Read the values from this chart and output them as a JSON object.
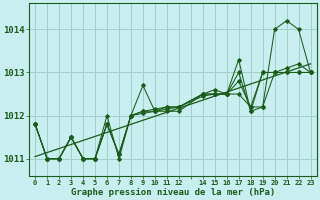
{
  "title": "Graphe pression niveau de la mer (hPa)",
  "bg_color": "#c8eef0",
  "grid_color": "#a0d0c8",
  "line_color": "#1a5c1a",
  "x_tick_labels": [
    "0",
    "1",
    "2",
    "3",
    "4",
    "5",
    "6",
    "7",
    "8",
    "9",
    "10",
    "11",
    "12",
    "",
    "14",
    "15",
    "16",
    "17",
    "18",
    "19",
    "20",
    "21",
    "22",
    "23"
  ],
  "x_tick_pos": [
    0,
    1,
    2,
    3,
    4,
    5,
    6,
    7,
    8,
    9,
    10,
    11,
    12,
    13,
    14,
    15,
    16,
    17,
    18,
    19,
    20,
    21,
    22,
    23
  ],
  "ylim": [
    1010.6,
    1014.6
  ],
  "yticks": [
    1011,
    1012,
    1013,
    1014
  ],
  "series": [
    {
      "x": [
        0,
        1,
        2,
        3,
        4,
        5,
        6,
        7,
        8,
        9,
        10,
        11,
        12,
        14,
        15,
        16,
        17,
        18,
        19,
        20,
        21,
        22,
        23
      ],
      "y": [
        1011.8,
        1011.0,
        1011.0,
        1011.5,
        1011.0,
        1011.0,
        1012.0,
        1011.0,
        1012.0,
        1012.7,
        1012.1,
        1012.1,
        1012.1,
        1012.5,
        1012.6,
        1012.5,
        1013.3,
        1012.1,
        1012.2,
        1014.0,
        1014.2,
        1014.0,
        1013.0
      ]
    },
    {
      "x": [
        0,
        1,
        2,
        3,
        4,
        5,
        6,
        7,
        8,
        9,
        10,
        11,
        12,
        14,
        15,
        16,
        17,
        18,
        19,
        20,
        21,
        22,
        23
      ],
      "y": [
        1011.8,
        1011.0,
        1011.0,
        1011.5,
        1011.0,
        1011.0,
        1011.8,
        1011.1,
        1012.0,
        1012.1,
        1012.1,
        1012.2,
        1012.2,
        1012.5,
        1012.5,
        1012.5,
        1013.0,
        1012.1,
        1013.0,
        1013.0,
        1013.1,
        1013.2,
        1013.0
      ]
    },
    {
      "x": [
        0,
        1,
        2,
        3,
        4,
        5,
        6,
        7,
        8,
        9,
        10,
        11,
        12,
        14,
        15,
        16,
        17,
        18,
        19,
        20,
        21,
        22,
        23
      ],
      "y": [
        1011.8,
        1011.0,
        1011.0,
        1011.5,
        1011.0,
        1011.0,
        1011.8,
        1011.1,
        1012.0,
        1012.1,
        1012.15,
        1012.2,
        1012.2,
        1012.5,
        1012.5,
        1012.5,
        1012.8,
        1012.2,
        1013.0,
        1013.0,
        1013.0,
        1013.0,
        1013.0
      ]
    },
    {
      "x": [
        0,
        1,
        2,
        3,
        4,
        5,
        6,
        7,
        8,
        9,
        10,
        11,
        12,
        14,
        15,
        16,
        17,
        18,
        19,
        20,
        21,
        22,
        23
      ],
      "y": [
        1011.8,
        1011.0,
        1011.0,
        1011.5,
        1011.0,
        1011.0,
        1011.8,
        1011.1,
        1012.0,
        1012.05,
        1012.1,
        1012.15,
        1012.2,
        1012.45,
        1012.5,
        1012.5,
        1012.5,
        1012.2,
        1012.2,
        1013.0,
        1013.0,
        1013.0,
        1013.0
      ]
    }
  ],
  "trend_x": [
    0,
    23
  ],
  "trend_y": [
    1011.05,
    1013.2
  ]
}
